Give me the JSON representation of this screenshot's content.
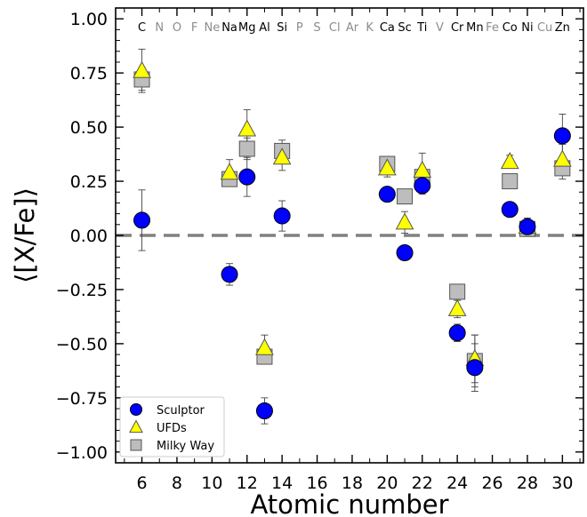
{
  "chart_data": {
    "type": "scatter",
    "xlabel": "Atomic number",
    "ylabel": "⟨[X/Fe]⟩",
    "xlim": [
      4.5,
      31.2
    ],
    "ylim": [
      -1.05,
      1.05
    ],
    "xticks": [
      6,
      8,
      10,
      12,
      14,
      16,
      18,
      20,
      22,
      24,
      26,
      28,
      30
    ],
    "yticks": [
      -1.0,
      -0.75,
      -0.5,
      -0.25,
      0.0,
      0.25,
      0.5,
      0.75,
      1.0
    ],
    "reference_line": 0.0,
    "legend_position": "lower-left",
    "elements": [
      {
        "symbol": "C",
        "z": 6,
        "measured": true
      },
      {
        "symbol": "N",
        "z": 7,
        "measured": false
      },
      {
        "symbol": "O",
        "z": 8,
        "measured": false
      },
      {
        "symbol": "F",
        "z": 9,
        "measured": false
      },
      {
        "symbol": "Ne",
        "z": 10,
        "measured": false
      },
      {
        "symbol": "Na",
        "z": 11,
        "measured": true
      },
      {
        "symbol": "Mg",
        "z": 12,
        "measured": true
      },
      {
        "symbol": "Al",
        "z": 13,
        "measured": true
      },
      {
        "symbol": "Si",
        "z": 14,
        "measured": true
      },
      {
        "symbol": "P",
        "z": 15,
        "measured": false
      },
      {
        "symbol": "S",
        "z": 16,
        "measured": false
      },
      {
        "symbol": "Cl",
        "z": 17,
        "measured": false
      },
      {
        "symbol": "Ar",
        "z": 18,
        "measured": false
      },
      {
        "symbol": "K",
        "z": 19,
        "measured": false
      },
      {
        "symbol": "Ca",
        "z": 20,
        "measured": true
      },
      {
        "symbol": "Sc",
        "z": 21,
        "measured": true
      },
      {
        "symbol": "Ti",
        "z": 22,
        "measured": true
      },
      {
        "symbol": "V",
        "z": 23,
        "measured": false
      },
      {
        "symbol": "Cr",
        "z": 24,
        "measured": true
      },
      {
        "symbol": "Mn",
        "z": 25,
        "measured": true
      },
      {
        "symbol": "Fe",
        "z": 26,
        "measured": false
      },
      {
        "symbol": "Co",
        "z": 27,
        "measured": true
      },
      {
        "symbol": "Ni",
        "z": 28,
        "measured": true
      },
      {
        "symbol": "Cu",
        "z": 29,
        "measured": false
      },
      {
        "symbol": "Zn",
        "z": 30,
        "measured": true
      }
    ],
    "series": [
      {
        "name": "Milky Way",
        "marker": "square",
        "color": "#bdbdbd",
        "points": [
          {
            "x": 6,
            "y": 0.72,
            "err": 0.05
          },
          {
            "x": 11,
            "y": 0.26,
            "err": 0.03
          },
          {
            "x": 12,
            "y": 0.4,
            "err": 0.05
          },
          {
            "x": 13,
            "y": -0.56,
            "err": 0.03
          },
          {
            "x": 14,
            "y": 0.39,
            "err": 0.05
          },
          {
            "x": 20,
            "y": 0.33,
            "err": 0.03
          },
          {
            "x": 21,
            "y": 0.18,
            "err": 0.02
          },
          {
            "x": 22,
            "y": 0.27,
            "err": 0.03
          },
          {
            "x": 24,
            "y": -0.26,
            "err": 0.02
          },
          {
            "x": 25,
            "y": -0.58,
            "err": 0.12
          },
          {
            "x": 27,
            "y": 0.25,
            "err": 0.02
          },
          {
            "x": 28,
            "y": 0.03,
            "err": 0.02
          },
          {
            "x": 30,
            "y": 0.31,
            "err": 0.05
          }
        ]
      },
      {
        "name": "UFDs",
        "marker": "triangle",
        "color": "#ffff00",
        "points": [
          {
            "x": 6,
            "y": 0.76,
            "err": 0.1
          },
          {
            "x": 11,
            "y": 0.29,
            "err": 0.06
          },
          {
            "x": 12,
            "y": 0.49,
            "err": 0.09
          },
          {
            "x": 13,
            "y": -0.52,
            "err": 0.06
          },
          {
            "x": 14,
            "y": 0.36,
            "err": 0.06
          },
          {
            "x": 20,
            "y": 0.31,
            "err": 0.04
          },
          {
            "x": 21,
            "y": 0.06,
            "err": 0.05
          },
          {
            "x": 22,
            "y": 0.3,
            "err": 0.08
          },
          {
            "x": 24,
            "y": -0.34,
            "err": 0.04
          },
          {
            "x": 25,
            "y": -0.57,
            "err": 0.11
          },
          {
            "x": 27,
            "y": 0.34,
            "err": 0.03
          },
          {
            "x": 28,
            "y": 0.04,
            "err": 0.04
          },
          {
            "x": 30,
            "y": 0.35,
            "err": 0.07
          }
        ]
      },
      {
        "name": "Sculptor",
        "marker": "circle",
        "color": "#0000ff",
        "points": [
          {
            "x": 6,
            "y": 0.07,
            "err": 0.14
          },
          {
            "x": 11,
            "y": -0.18,
            "err": 0.05
          },
          {
            "x": 12,
            "y": 0.27,
            "err": 0.09
          },
          {
            "x": 13,
            "y": -0.81,
            "err": 0.06
          },
          {
            "x": 14,
            "y": 0.09,
            "err": 0.07
          },
          {
            "x": 20,
            "y": 0.19,
            "err": 0.03
          },
          {
            "x": 21,
            "y": -0.08,
            "err": 0.03
          },
          {
            "x": 22,
            "y": 0.23,
            "err": 0.04
          },
          {
            "x": 24,
            "y": -0.45,
            "err": 0.04
          },
          {
            "x": 25,
            "y": -0.61,
            "err": 0.11
          },
          {
            "x": 27,
            "y": 0.12,
            "err": 0.02
          },
          {
            "x": 28,
            "y": 0.04,
            "err": 0.03
          },
          {
            "x": 30,
            "y": 0.46,
            "err": 0.1
          }
        ]
      }
    ],
    "legend": [
      {
        "name": "Sculptor",
        "marker": "circle",
        "color": "#0000ff"
      },
      {
        "name": "UFDs",
        "marker": "triangle",
        "color": "#ffff00"
      },
      {
        "name": "Milky Way",
        "marker": "square",
        "color": "#bdbdbd"
      }
    ]
  }
}
